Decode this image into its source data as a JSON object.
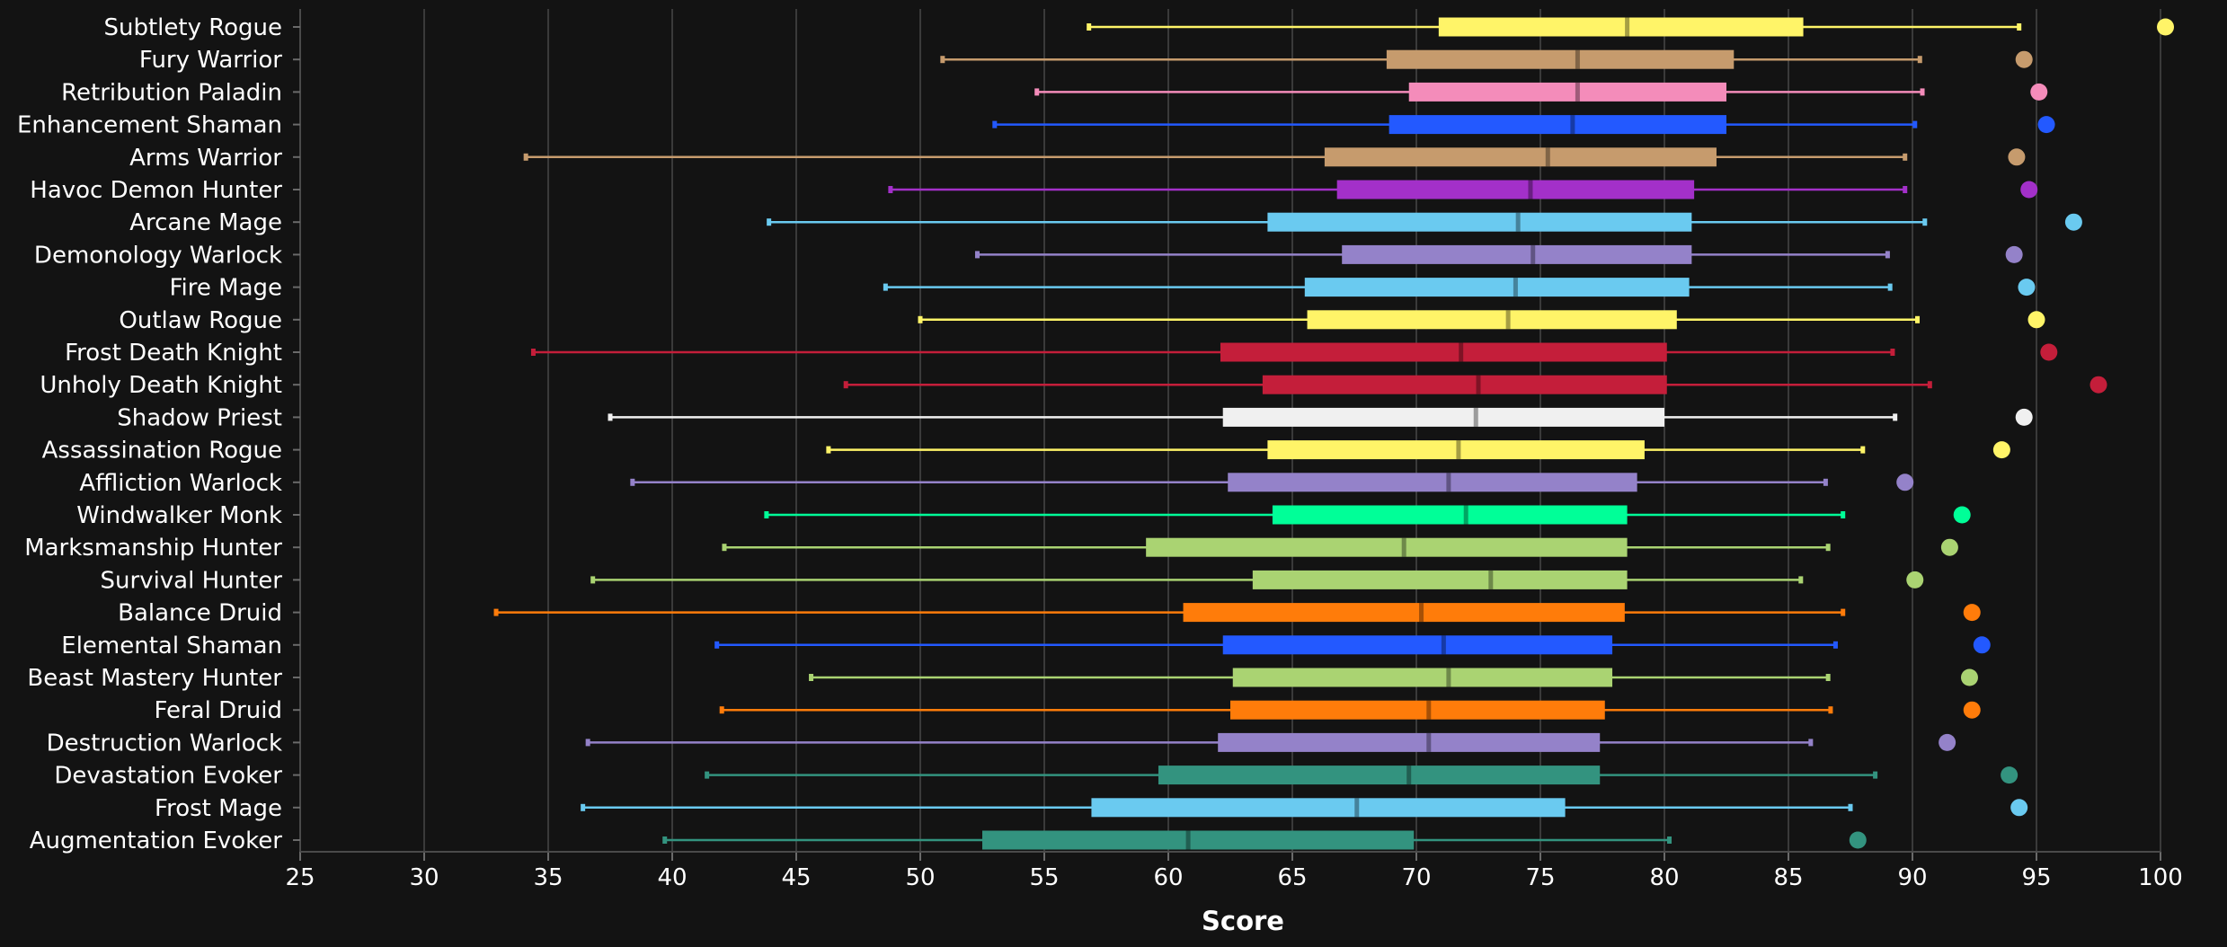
{
  "chart_data": {
    "type": "box",
    "xlabel": "Score",
    "xlim": [
      25,
      100
    ],
    "xticks": [
      25,
      30,
      35,
      40,
      45,
      50,
      55,
      60,
      65,
      70,
      75,
      80,
      85,
      90,
      95,
      100
    ],
    "grid": "vertical",
    "legend": "none",
    "series": [
      {
        "name": "Subtlety Rogue",
        "color": "#fff468",
        "min": 56.8,
        "q1": 70.9,
        "median": 78.5,
        "q3": 85.6,
        "max": 94.3,
        "top": 100.2
      },
      {
        "name": "Fury Warrior",
        "color": "#c69b6d",
        "min": 50.9,
        "q1": 68.8,
        "median": 76.5,
        "q3": 82.8,
        "max": 90.3,
        "top": 94.5
      },
      {
        "name": "Retribution Paladin",
        "color": "#f48cba",
        "min": 54.7,
        "q1": 69.7,
        "median": 76.5,
        "q3": 82.5,
        "max": 90.4,
        "top": 95.1
      },
      {
        "name": "Enhancement Shaman",
        "color": "#2359ff",
        "min": 53.0,
        "q1": 68.9,
        "median": 76.3,
        "q3": 82.5,
        "max": 90.1,
        "top": 95.4
      },
      {
        "name": "Arms Warrior",
        "color": "#c69b6d",
        "min": 34.1,
        "q1": 66.3,
        "median": 75.3,
        "q3": 82.1,
        "max": 89.7,
        "top": 94.2
      },
      {
        "name": "Havoc Demon Hunter",
        "color": "#a330c9",
        "min": 48.8,
        "q1": 66.8,
        "median": 74.6,
        "q3": 81.2,
        "max": 89.7,
        "top": 94.7
      },
      {
        "name": "Arcane Mage",
        "color": "#6acaf0",
        "min": 43.9,
        "q1": 64.0,
        "median": 74.1,
        "q3": 81.1,
        "max": 90.5,
        "top": 96.5
      },
      {
        "name": "Demonology Warlock",
        "color": "#9482c9",
        "min": 52.3,
        "q1": 67.0,
        "median": 74.7,
        "q3": 81.1,
        "max": 89.0,
        "top": 94.1
      },
      {
        "name": "Fire Mage",
        "color": "#6acaf0",
        "min": 48.6,
        "q1": 65.5,
        "median": 74.0,
        "q3": 81.0,
        "max": 89.1,
        "top": 94.6
      },
      {
        "name": "Outlaw Rogue",
        "color": "#fff468",
        "min": 50.0,
        "q1": 65.6,
        "median": 73.7,
        "q3": 80.5,
        "max": 90.2,
        "top": 95.0
      },
      {
        "name": "Frost Death Knight",
        "color": "#c41e3a",
        "min": 34.4,
        "q1": 62.1,
        "median": 71.8,
        "q3": 80.1,
        "max": 89.2,
        "top": 95.5
      },
      {
        "name": "Unholy Death Knight",
        "color": "#c41e3a",
        "min": 47.0,
        "q1": 63.8,
        "median": 72.5,
        "q3": 80.1,
        "max": 90.7,
        "top": 97.5
      },
      {
        "name": "Shadow Priest",
        "color": "#f0f0f0",
        "min": 37.5,
        "q1": 62.2,
        "median": 72.4,
        "q3": 80.0,
        "max": 89.3,
        "top": 94.5
      },
      {
        "name": "Assassination Rogue",
        "color": "#fff468",
        "min": 46.3,
        "q1": 64.0,
        "median": 71.7,
        "q3": 79.2,
        "max": 88.0,
        "top": 93.6
      },
      {
        "name": "Affliction Warlock",
        "color": "#9482c9",
        "min": 38.4,
        "q1": 62.4,
        "median": 71.3,
        "q3": 78.9,
        "max": 86.5,
        "top": 89.7
      },
      {
        "name": "Windwalker Monk",
        "color": "#00ff98",
        "min": 43.8,
        "q1": 64.2,
        "median": 72.0,
        "q3": 78.5,
        "max": 87.2,
        "top": 92.0
      },
      {
        "name": "Marksmanship Hunter",
        "color": "#aad372",
        "min": 42.1,
        "q1": 59.1,
        "median": 69.5,
        "q3": 78.5,
        "max": 86.6,
        "top": 91.5
      },
      {
        "name": "Survival Hunter",
        "color": "#aad372",
        "min": 36.8,
        "q1": 63.4,
        "median": 73.0,
        "q3": 78.5,
        "max": 85.5,
        "top": 90.1
      },
      {
        "name": "Balance Druid",
        "color": "#ff7c0a",
        "min": 32.9,
        "q1": 60.6,
        "median": 70.2,
        "q3": 78.4,
        "max": 87.2,
        "top": 92.4
      },
      {
        "name": "Elemental Shaman",
        "color": "#2359ff",
        "min": 41.8,
        "q1": 62.2,
        "median": 71.1,
        "q3": 77.9,
        "max": 86.9,
        "top": 92.8
      },
      {
        "name": "Beast Mastery Hunter",
        "color": "#aad372",
        "min": 45.6,
        "q1": 62.6,
        "median": 71.3,
        "q3": 77.9,
        "max": 86.6,
        "top": 92.3
      },
      {
        "name": "Feral Druid",
        "color": "#ff7c0a",
        "min": 42.0,
        "q1": 62.5,
        "median": 70.5,
        "q3": 77.6,
        "max": 86.7,
        "top": 92.4
      },
      {
        "name": "Destruction Warlock",
        "color": "#9482c9",
        "min": 36.6,
        "q1": 62.0,
        "median": 70.5,
        "q3": 77.4,
        "max": 85.9,
        "top": 91.4
      },
      {
        "name": "Devastation Evoker",
        "color": "#33937f",
        "min": 41.4,
        "q1": 59.6,
        "median": 69.7,
        "q3": 77.4,
        "max": 88.5,
        "top": 93.9
      },
      {
        "name": "Frost Mage",
        "color": "#6acaf0",
        "min": 36.4,
        "q1": 56.9,
        "median": 67.6,
        "q3": 76.0,
        "max": 87.5,
        "top": 94.3
      },
      {
        "name": "Augmentation Evoker",
        "color": "#33937f",
        "min": 39.7,
        "q1": 52.5,
        "median": 60.8,
        "q3": 69.9,
        "max": 80.2,
        "top": 87.8
      }
    ]
  }
}
